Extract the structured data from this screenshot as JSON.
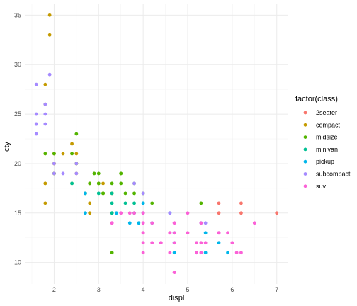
{
  "chart_data": {
    "type": "scatter",
    "xlabel": "displ",
    "ylabel": "cty",
    "xlim": [
      1.6,
      7.0
    ],
    "ylim": [
      9,
      35
    ],
    "xticks": [
      2,
      3,
      4,
      5,
      6,
      7
    ],
    "yticks": [
      10,
      15,
      20,
      25,
      30,
      35
    ],
    "grid": true,
    "legend": {
      "title": "factor(class)",
      "position": "right",
      "entries": [
        "2seater",
        "compact",
        "midsize",
        "minivan",
        "pickup",
        "subcompact",
        "suv"
      ]
    },
    "colors": {
      "2seater": "#F8766D",
      "compact": "#C49A00",
      "midsize": "#53B400",
      "minivan": "#00C094",
      "pickup": "#00B6EB",
      "subcompact": "#A58AFF",
      "suv": "#FB61D7"
    },
    "series": [
      {
        "name": "2seater",
        "points": [
          [
            5.7,
            15
          ],
          [
            5.7,
            16
          ],
          [
            6.2,
            15
          ],
          [
            6.2,
            16
          ],
          [
            7.0,
            15
          ]
        ]
      },
      {
        "name": "compact",
        "points": [
          [
            1.8,
            18
          ],
          [
            1.8,
            21
          ],
          [
            2.0,
            20
          ],
          [
            2.0,
            21
          ],
          [
            2.8,
            16
          ],
          [
            2.8,
            18
          ],
          [
            3.1,
            18
          ],
          [
            1.8,
            18
          ],
          [
            1.8,
            16
          ],
          [
            2.0,
            20
          ],
          [
            2.0,
            19
          ],
          [
            2.8,
            15
          ],
          [
            3.1,
            17
          ],
          [
            1.8,
            26
          ],
          [
            1.8,
            28
          ],
          [
            1.9,
            33
          ],
          [
            2.0,
            21
          ],
          [
            2.0,
            19
          ],
          [
            2.2,
            21
          ],
          [
            2.4,
            21
          ],
          [
            2.4,
            22
          ],
          [
            2.5,
            19
          ],
          [
            2.5,
            21
          ],
          [
            2.5,
            20
          ],
          [
            3.0,
            18
          ],
          [
            3.3,
            17
          ],
          [
            1.9,
            35
          ],
          [
            2.5,
            20
          ]
        ]
      },
      {
        "name": "midsize",
        "points": [
          [
            2.4,
            18
          ],
          [
            2.5,
            20
          ],
          [
            3.0,
            18
          ],
          [
            3.1,
            17
          ],
          [
            3.5,
            19
          ],
          [
            3.8,
            18
          ],
          [
            4.2,
            16
          ],
          [
            5.3,
            16
          ],
          [
            2.0,
            21
          ],
          [
            2.0,
            19
          ],
          [
            2.7,
            17
          ],
          [
            2.8,
            18
          ],
          [
            3.1,
            17
          ],
          [
            3.3,
            18
          ],
          [
            3.5,
            18
          ],
          [
            3.8,
            17
          ],
          [
            4.0,
            17
          ],
          [
            2.4,
            21
          ],
          [
            2.5,
            23
          ],
          [
            2.9,
            19
          ],
          [
            3.3,
            11
          ],
          [
            3.5,
            19
          ],
          [
            3.6,
            17
          ],
          [
            3.0,
            19
          ],
          [
            3.3,
            15
          ],
          [
            1.8,
            21
          ]
        ]
      },
      {
        "name": "minivan",
        "points": [
          [
            2.4,
            18
          ],
          [
            3.0,
            17
          ],
          [
            3.3,
            17
          ],
          [
            3.3,
            16
          ],
          [
            3.3,
            15
          ],
          [
            3.8,
            15
          ],
          [
            4.0,
            16
          ],
          [
            3.8,
            16
          ],
          [
            3.6,
            16
          ]
        ]
      },
      {
        "name": "pickup",
        "points": [
          [
            2.7,
            15
          ],
          [
            2.7,
            17
          ],
          [
            3.4,
            15
          ],
          [
            3.7,
            14
          ],
          [
            3.9,
            14
          ],
          [
            4.0,
            15
          ],
          [
            4.2,
            14
          ],
          [
            4.7,
            13
          ],
          [
            4.7,
            11
          ],
          [
            5.2,
            11
          ],
          [
            5.4,
            13
          ],
          [
            5.7,
            12
          ],
          [
            5.9,
            11
          ],
          [
            4.0,
            16
          ],
          [
            4.6,
            15
          ],
          [
            4.7,
            12
          ],
          [
            5.3,
            14
          ],
          [
            5.4,
            11
          ]
        ]
      },
      {
        "name": "subcompact",
        "points": [
          [
            1.6,
            28
          ],
          [
            1.6,
            24
          ],
          [
            1.6,
            25
          ],
          [
            1.6,
            23
          ],
          [
            1.8,
            25
          ],
          [
            1.8,
            26
          ],
          [
            1.9,
            29
          ],
          [
            2.0,
            19
          ],
          [
            2.0,
            20
          ],
          [
            2.2,
            19
          ],
          [
            2.5,
            20
          ],
          [
            2.5,
            19
          ],
          [
            3.8,
            18
          ],
          [
            4.0,
            17
          ],
          [
            4.6,
            15
          ],
          [
            5.4,
            14
          ],
          [
            1.6,
            24
          ],
          [
            1.8,
            24
          ]
        ]
      },
      {
        "name": "suv",
        "points": [
          [
            5.3,
            14
          ],
          [
            5.3,
            11
          ],
          [
            5.7,
            13
          ],
          [
            6.0,
            12
          ],
          [
            6.5,
            14
          ],
          [
            4.7,
            14
          ],
          [
            4.7,
            12
          ],
          [
            5.2,
            12
          ],
          [
            5.7,
            13
          ],
          [
            5.9,
            13
          ],
          [
            4.0,
            14
          ],
          [
            4.7,
            9
          ],
          [
            5.3,
            12
          ],
          [
            4.2,
            12
          ],
          [
            4.6,
            13
          ],
          [
            5.0,
            13
          ],
          [
            5.4,
            12
          ],
          [
            4.0,
            15
          ],
          [
            4.6,
            11
          ],
          [
            5.2,
            11
          ],
          [
            4.0,
            13
          ],
          [
            3.7,
            15
          ],
          [
            4.0,
            11
          ],
          [
            4.4,
            12
          ],
          [
            4.7,
            14
          ],
          [
            6.1,
            11
          ],
          [
            3.3,
            14
          ],
          [
            3.8,
            15
          ],
          [
            4.0,
            15
          ],
          [
            4.6,
            13
          ],
          [
            5.0,
            15
          ],
          [
            4.2,
            14
          ],
          [
            4.7,
            13
          ],
          [
            5.7,
            13
          ],
          [
            6.2,
            11
          ],
          [
            3.5,
            15
          ],
          [
            4.4,
            12
          ],
          [
            4.7,
            9
          ],
          [
            4.0,
            12
          ],
          [
            3.3,
            14
          ],
          [
            4.0,
            13
          ]
        ]
      }
    ]
  }
}
